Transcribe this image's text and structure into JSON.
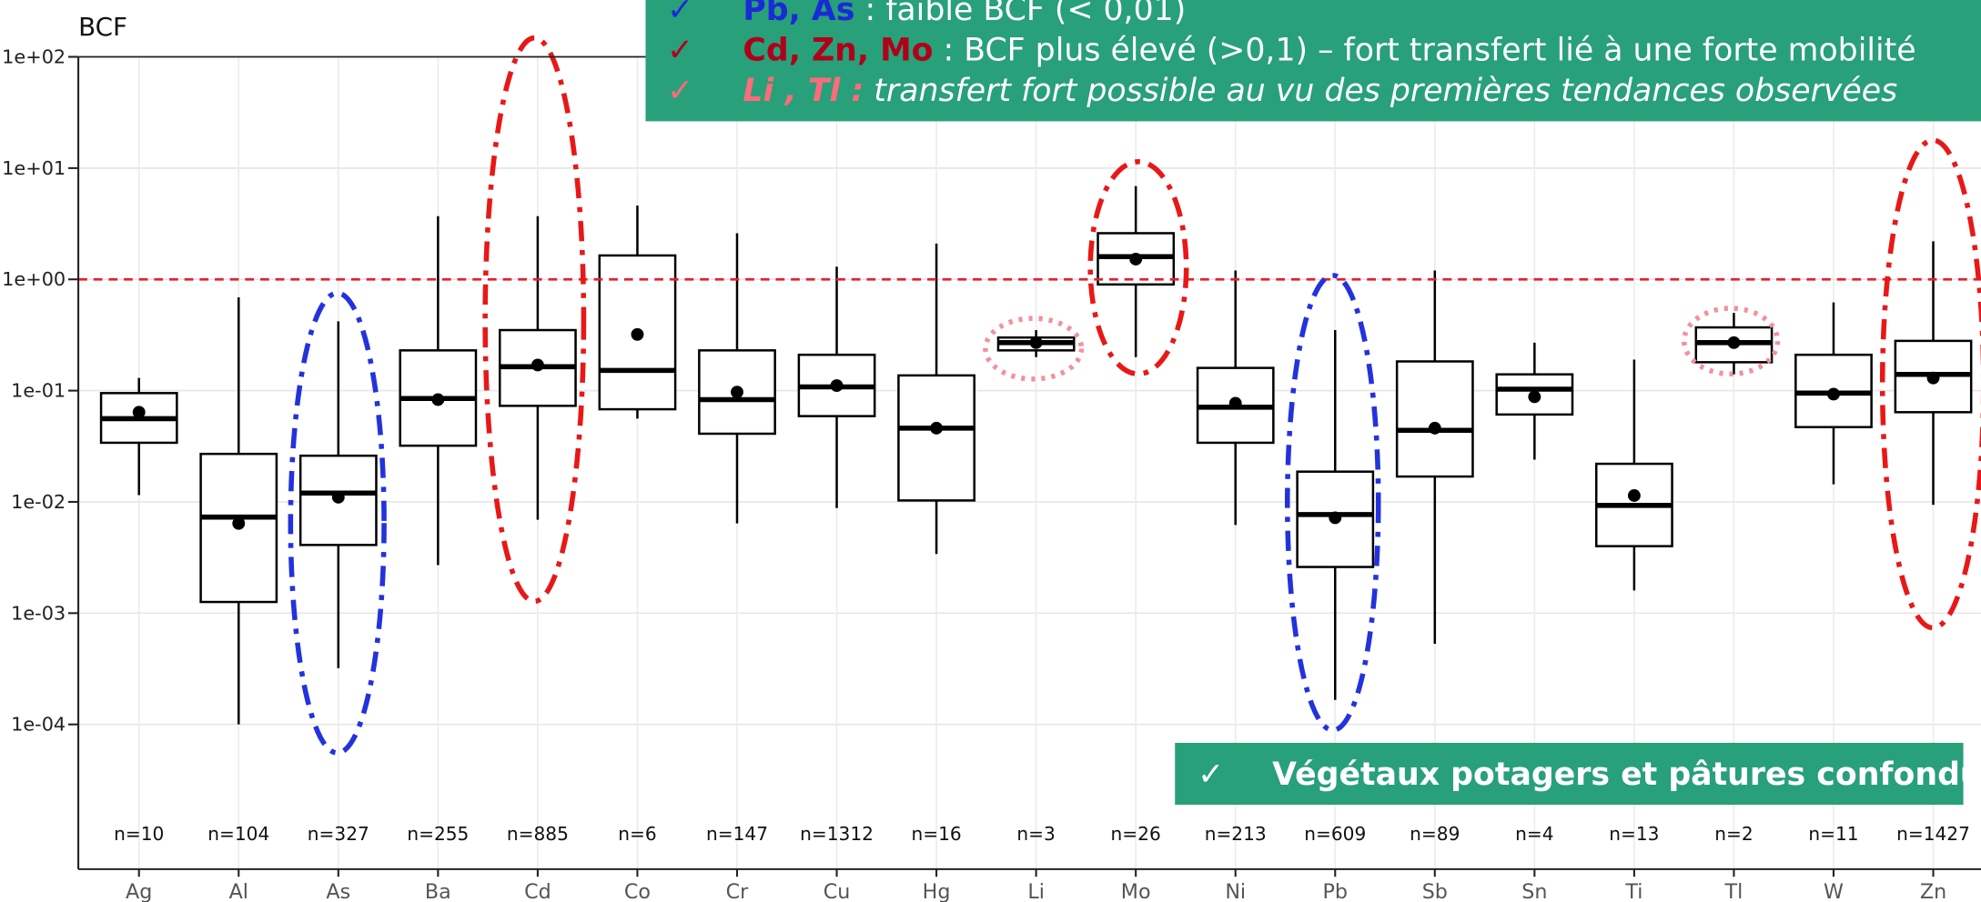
{
  "chart_data": {
    "type": "box",
    "y_label": "BCF",
    "log_y": true,
    "grid": true,
    "categories": [
      "Ag",
      "Al",
      "As",
      "Ba",
      "Cd",
      "Co",
      "Cr",
      "Cu",
      "Hg",
      "Li",
      "Mo",
      "Ni",
      "Pb",
      "Sb",
      "Sn",
      "Ti",
      "Tl",
      "W",
      "Zn"
    ],
    "n_labels": [
      "n=10",
      "n=104",
      "n=327",
      "n=255",
      "n=885",
      "n=6",
      "n=147",
      "n=1312",
      "n=16",
      "n=3",
      "n=26",
      "n=213",
      "n=609",
      "n=89",
      "n=4",
      "n=13",
      "n=2",
      "n=11",
      "n=1427"
    ],
    "whisker_low": [
      0.0115,
      0.0001,
      0.00032,
      0.0027,
      0.0069,
      0.056,
      0.0064,
      0.0088,
      0.0034,
      0.2,
      0.2,
      0.0062,
      0.000166,
      0.00053,
      0.024,
      0.0016,
      0.14,
      0.0144,
      0.0094
    ],
    "q1": [
      0.034,
      0.00126,
      0.0041,
      0.032,
      0.073,
      0.068,
      0.041,
      0.059,
      0.0103,
      0.23,
      0.9,
      0.034,
      0.0026,
      0.0169,
      0.061,
      0.004,
      0.18,
      0.047,
      0.064
    ],
    "median": [
      0.056,
      0.0073,
      0.012,
      0.085,
      0.164,
      0.152,
      0.083,
      0.108,
      0.046,
      0.27,
      1.6,
      0.071,
      0.0077,
      0.044,
      0.103,
      0.0093,
      0.27,
      0.095,
      0.14
    ],
    "q3": [
      0.095,
      0.027,
      0.026,
      0.23,
      0.35,
      1.64,
      0.23,
      0.21,
      0.137,
      0.3,
      2.6,
      0.16,
      0.0187,
      0.183,
      0.14,
      0.022,
      0.37,
      0.21,
      0.28
    ],
    "whisker_high": [
      0.13,
      0.69,
      0.42,
      3.7,
      3.7,
      4.6,
      2.6,
      1.3,
      2.1,
      0.35,
      6.9,
      1.2,
      0.35,
      1.2,
      0.27,
      0.19,
      0.5,
      0.62,
      2.2
    ],
    "mean": [
      0.064,
      0.0064,
      0.011,
      0.083,
      0.17,
      0.32,
      0.097,
      0.111,
      0.046,
      0.27,
      1.52,
      0.077,
      0.0072,
      0.046,
      0.088,
      0.0114,
      0.27,
      0.093,
      0.13
    ],
    "box_color": "#000000",
    "reference_line": 1,
    "reference_color": "#e8202a",
    "ylim": [
      5e-06,
      100
    ],
    "yticks": [
      {
        "value": 0.0001,
        "label": "1e-04"
      },
      {
        "value": 0.001,
        "label": "1e-03"
      },
      {
        "value": 0.01,
        "label": "1e-02"
      },
      {
        "value": 0.1,
        "label": "1e-01"
      },
      {
        "value": 1,
        "label": "1e+00"
      },
      {
        "value": 10,
        "label": "1e+01"
      },
      {
        "value": 100,
        "label": "1e+02"
      }
    ]
  },
  "callouts": [
    {
      "check": "✓",
      "label": "Pb, As",
      "text": " : faible BCF (< 0,01)"
    },
    {
      "check": "✓",
      "label": "Cd, Zn, Mo",
      "text": " : BCF plus élevé (>0,1) – fort transfert lié à une forte mobilité"
    },
    {
      "check": "✓",
      "label": "Li , Tl :",
      "text": " transfert fort possible au vu des premières tendances observées"
    }
  ],
  "footnote": {
    "check": "✓",
    "text": "Végétaux potagers et pâtures confondus"
  }
}
